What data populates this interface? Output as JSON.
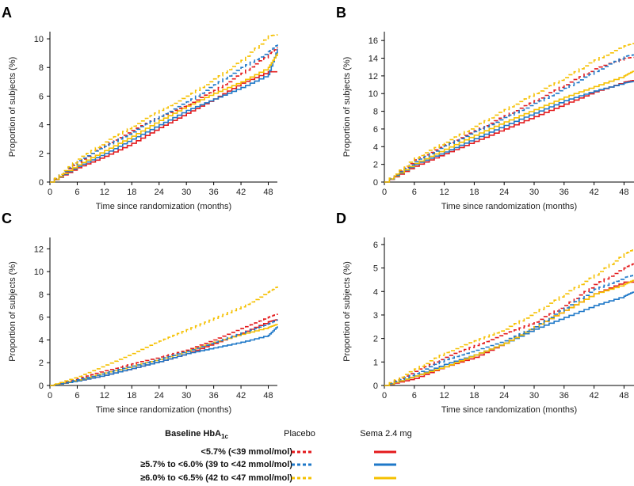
{
  "figure": {
    "legend": {
      "title_main": "Baseline HbA",
      "title_sub": "1c",
      "placebo_label": "Placebo",
      "sema_label": "Sema 2.4 mg",
      "rows": [
        {
          "label": "<5.7% (<39 mmol/mol)",
          "color": "#e41a1c"
        },
        {
          "label": "≥5.7% to <6.0% (39 to <42 mmol/mol)",
          "color": "#1f78c8"
        },
        {
          "label": "≥6.0% to <6.5% (42 to <47 mmol/mol)",
          "color": "#f5c000"
        }
      ]
    }
  },
  "chart_data": [
    {
      "panel": "A",
      "type": "line",
      "xlabel": "Time since randomization (months)",
      "ylabel": "Proportion of subjects (%)",
      "xlim": [
        0,
        50
      ],
      "ylim": [
        0,
        10.5
      ],
      "xticks": [
        0,
        6,
        12,
        18,
        24,
        30,
        36,
        42,
        48
      ],
      "yticks": [
        0,
        2,
        4,
        6,
        8,
        10
      ],
      "series": [
        {
          "name": "<5.7% Placebo",
          "group": 0,
          "dashed": true,
          "x": [
            0,
            6,
            12,
            18,
            24,
            30,
            36,
            42,
            48,
            50
          ],
          "y": [
            0,
            1.4,
            2.6,
            3.6,
            4.6,
            5.4,
            6.4,
            7.6,
            8.9,
            9.4
          ]
        },
        {
          "name": "≥5.7% to <6.0% Placebo",
          "group": 1,
          "dashed": true,
          "x": [
            0,
            6,
            12,
            18,
            24,
            30,
            36,
            42,
            48,
            50
          ],
          "y": [
            0,
            1.5,
            2.5,
            3.5,
            4.6,
            5.6,
            6.8,
            8.0,
            9.1,
            9.6
          ]
        },
        {
          "name": "≥6.0% to <6.5% Placebo",
          "group": 2,
          "dashed": true,
          "x": [
            0,
            6,
            12,
            18,
            24,
            30,
            36,
            42,
            48,
            50
          ],
          "y": [
            0,
            1.6,
            2.8,
            3.9,
            5.0,
            6.0,
            7.2,
            8.5,
            10.2,
            10.3
          ]
        },
        {
          "name": "<5.7% Sema 2.4 mg",
          "group": 0,
          "dashed": false,
          "x": [
            0,
            6,
            12,
            18,
            24,
            30,
            36,
            42,
            48,
            50
          ],
          "y": [
            0,
            1.0,
            1.8,
            2.7,
            3.8,
            4.8,
            5.8,
            6.9,
            7.7,
            7.7
          ]
        },
        {
          "name": "≥5.7% to <6.0% Sema 2.4 mg",
          "group": 1,
          "dashed": false,
          "x": [
            0,
            6,
            12,
            18,
            24,
            30,
            36,
            42,
            48,
            50
          ],
          "y": [
            0,
            1.1,
            2.0,
            3.0,
            4.0,
            5.0,
            5.8,
            6.6,
            7.5,
            9.3
          ]
        },
        {
          "name": "≥6.0% to <6.5% Sema 2.4 mg",
          "group": 2,
          "dashed": false,
          "x": [
            0,
            6,
            12,
            18,
            24,
            30,
            36,
            42,
            48,
            50
          ],
          "y": [
            0,
            1.2,
            2.2,
            3.2,
            4.3,
            5.3,
            6.2,
            7.0,
            8.0,
            9.0
          ]
        }
      ]
    },
    {
      "panel": "B",
      "type": "line",
      "xlabel": "Time since randomization (months)",
      "ylabel": "Proportion of subjects (%)",
      "xlim": [
        0,
        50
      ],
      "ylim": [
        0,
        17
      ],
      "xticks": [
        0,
        6,
        12,
        18,
        24,
        30,
        36,
        42,
        48
      ],
      "yticks": [
        0,
        2,
        4,
        6,
        8,
        10,
        12,
        14,
        16
      ],
      "series": [
        {
          "name": "<5.7% Placebo",
          "group": 0,
          "dashed": true,
          "x": [
            0,
            6,
            12,
            18,
            24,
            30,
            36,
            42,
            48,
            50
          ],
          "y": [
            0,
            2.5,
            4.2,
            5.8,
            7.5,
            9.2,
            11.0,
            12.8,
            14.0,
            14.1
          ]
        },
        {
          "name": "≥5.7% to <6.0% Placebo",
          "group": 1,
          "dashed": true,
          "x": [
            0,
            6,
            12,
            18,
            24,
            30,
            36,
            42,
            48,
            50
          ],
          "y": [
            0,
            2.3,
            4.1,
            5.7,
            7.3,
            8.9,
            10.6,
            12.5,
            14.2,
            14.4
          ]
        },
        {
          "name": "≥6.0% to <6.5% Placebo",
          "group": 2,
          "dashed": true,
          "x": [
            0,
            6,
            12,
            18,
            24,
            30,
            36,
            42,
            48,
            50
          ],
          "y": [
            0,
            2.7,
            4.5,
            6.3,
            8.2,
            10.0,
            11.8,
            13.8,
            15.4,
            15.7
          ]
        },
        {
          "name": "<5.7% Sema 2.4 mg",
          "group": 0,
          "dashed": false,
          "x": [
            0,
            6,
            12,
            18,
            24,
            30,
            36,
            42,
            48,
            50
          ],
          "y": [
            0,
            1.8,
            3.2,
            4.6,
            6.0,
            7.4,
            8.8,
            10.2,
            11.3,
            11.5
          ]
        },
        {
          "name": "≥5.7% to <6.0% Sema 2.4 mg",
          "group": 1,
          "dashed": false,
          "x": [
            0,
            6,
            12,
            18,
            24,
            30,
            36,
            42,
            48,
            50
          ],
          "y": [
            0,
            2.0,
            3.4,
            4.9,
            6.4,
            7.8,
            9.2,
            10.3,
            11.2,
            11.4
          ]
        },
        {
          "name": "≥6.0% to <6.5% Sema 2.4 mg",
          "group": 2,
          "dashed": false,
          "x": [
            0,
            6,
            12,
            18,
            24,
            30,
            36,
            42,
            48,
            50
          ],
          "y": [
            0,
            2.1,
            3.7,
            5.3,
            6.8,
            8.2,
            9.6,
            10.8,
            12.0,
            12.6
          ]
        }
      ]
    },
    {
      "panel": "C",
      "type": "line",
      "xlabel": "Time since randomization (months)",
      "ylabel": "Proportion of subjects (%)",
      "xlim": [
        0,
        50
      ],
      "ylim": [
        0,
        13
      ],
      "xticks": [
        0,
        6,
        12,
        18,
        24,
        30,
        36,
        42,
        48
      ],
      "yticks": [
        0,
        2,
        4,
        6,
        8,
        10,
        12
      ],
      "series": [
        {
          "name": "<5.7% Placebo",
          "group": 0,
          "dashed": true,
          "x": [
            0,
            6,
            12,
            18,
            24,
            30,
            36,
            42,
            48,
            50
          ],
          "y": [
            0,
            0.6,
            1.3,
            1.9,
            2.5,
            3.1,
            4.0,
            5.0,
            6.0,
            6.3
          ]
        },
        {
          "name": "≥5.7% to <6.0% Placebo",
          "group": 1,
          "dashed": true,
          "x": [
            0,
            6,
            12,
            18,
            24,
            30,
            36,
            42,
            48,
            50
          ],
          "y": [
            0,
            0.5,
            1.1,
            1.7,
            2.3,
            3.0,
            3.8,
            4.6,
            5.4,
            5.8
          ]
        },
        {
          "name": "≥6.0% to <6.5% Placebo",
          "group": 2,
          "dashed": true,
          "x": [
            0,
            6,
            12,
            18,
            24,
            30,
            36,
            42,
            48,
            50
          ],
          "y": [
            0,
            0.8,
            1.8,
            2.8,
            3.9,
            4.9,
            5.9,
            6.9,
            8.2,
            8.7
          ]
        },
        {
          "name": "<5.7% Sema 2.4 mg",
          "group": 0,
          "dashed": false,
          "x": [
            0,
            6,
            12,
            18,
            24,
            30,
            36,
            42,
            48,
            50
          ],
          "y": [
            0,
            0.4,
            0.9,
            1.5,
            2.1,
            2.8,
            3.7,
            4.6,
            5.6,
            5.8
          ]
        },
        {
          "name": "≥5.7% to <6.0% Sema 2.4 mg",
          "group": 1,
          "dashed": false,
          "x": [
            0,
            6,
            12,
            18,
            24,
            30,
            36,
            42,
            48,
            50
          ],
          "y": [
            0,
            0.4,
            0.9,
            1.5,
            2.1,
            2.8,
            3.3,
            3.8,
            4.4,
            5.2
          ]
        },
        {
          "name": "≥6.0% to <6.5% Sema 2.4 mg",
          "group": 2,
          "dashed": false,
          "x": [
            0,
            6,
            12,
            18,
            24,
            30,
            36,
            42,
            48,
            50
          ],
          "y": [
            0,
            0.5,
            1.1,
            1.7,
            2.3,
            3.0,
            3.8,
            4.5,
            5.1,
            5.4
          ]
        }
      ]
    },
    {
      "panel": "D",
      "type": "line",
      "xlabel": "Time since randomization (months)",
      "ylabel": "Proportion of subjects (%)",
      "xlim": [
        0,
        50
      ],
      "ylim": [
        0,
        6.3
      ],
      "xticks": [
        0,
        6,
        12,
        18,
        24,
        30,
        36,
        42,
        48
      ],
      "yticks": [
        0,
        1,
        2,
        3,
        4,
        5,
        6
      ],
      "series": [
        {
          "name": "<5.7% Placebo",
          "group": 0,
          "dashed": true,
          "x": [
            0,
            6,
            12,
            18,
            24,
            30,
            36,
            42,
            48,
            50
          ],
          "y": [
            0,
            0.6,
            1.2,
            1.7,
            2.2,
            2.7,
            3.4,
            4.3,
            5.0,
            5.2
          ]
        },
        {
          "name": "≥5.7% to <6.0% Placebo",
          "group": 1,
          "dashed": true,
          "x": [
            0,
            6,
            12,
            18,
            24,
            30,
            36,
            42,
            48,
            50
          ],
          "y": [
            0,
            0.5,
            1.1,
            1.5,
            1.9,
            2.5,
            3.3,
            4.1,
            4.6,
            4.7
          ]
        },
        {
          "name": "≥6.0% to <6.5% Placebo",
          "group": 2,
          "dashed": true,
          "x": [
            0,
            6,
            12,
            18,
            24,
            30,
            36,
            42,
            48,
            50
          ],
          "y": [
            0,
            0.7,
            1.4,
            1.9,
            2.4,
            3.1,
            3.9,
            4.7,
            5.6,
            5.8
          ]
        },
        {
          "name": "<5.7% Sema 2.4 mg",
          "group": 0,
          "dashed": false,
          "x": [
            0,
            6,
            12,
            18,
            24,
            30,
            36,
            42,
            48,
            50
          ],
          "y": [
            0,
            0.3,
            0.8,
            1.2,
            1.8,
            2.5,
            3.2,
            3.9,
            4.4,
            4.4
          ]
        },
        {
          "name": "≥5.7% to <6.0% Sema 2.4 mg",
          "group": 1,
          "dashed": false,
          "x": [
            0,
            6,
            12,
            18,
            24,
            30,
            36,
            42,
            48,
            50
          ],
          "y": [
            0,
            0.4,
            0.9,
            1.3,
            1.8,
            2.4,
            2.9,
            3.4,
            3.8,
            4.0
          ]
        },
        {
          "name": "≥6.0% to <6.5% Sema 2.4 mg",
          "group": 2,
          "dashed": false,
          "x": [
            0,
            6,
            12,
            18,
            24,
            30,
            36,
            42,
            48,
            50
          ],
          "y": [
            0,
            0.4,
            0.8,
            1.3,
            1.8,
            2.5,
            3.2,
            3.9,
            4.3,
            4.5
          ]
        }
      ]
    }
  ]
}
